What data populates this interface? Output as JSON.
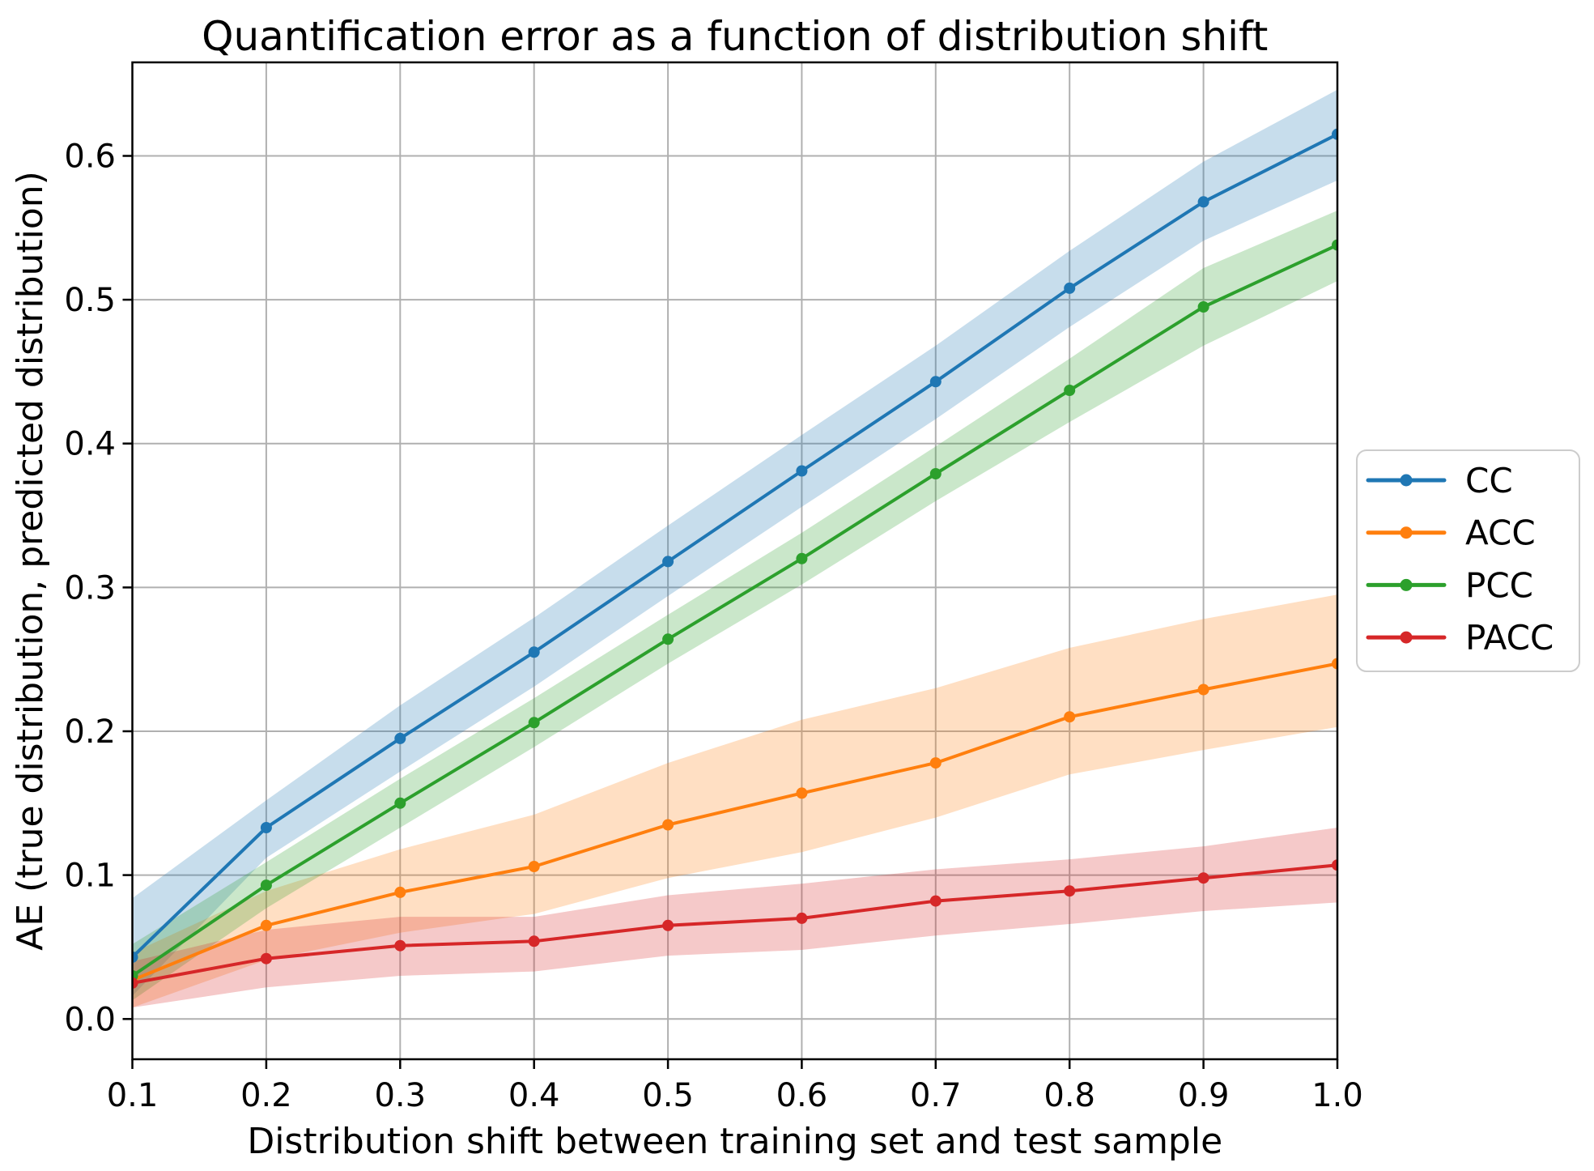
{
  "chart_data": {
    "type": "line",
    "title": "Quantification error as a function of distribution shift",
    "xlabel": "Distribution shift between training set and test sample",
    "ylabel": "AE (true distribution, predicted distribution)",
    "x": [
      0.1,
      0.2,
      0.3,
      0.4,
      0.5,
      0.6,
      0.7,
      0.8,
      0.9,
      1.0
    ],
    "xtick_labels": [
      "0.1",
      "0.2",
      "0.3",
      "0.4",
      "0.5",
      "0.6",
      "0.7",
      "0.8",
      "0.9",
      "1.0"
    ],
    "ytick_values": [
      0.0,
      0.1,
      0.2,
      0.3,
      0.4,
      0.5,
      0.6
    ],
    "ytick_labels": [
      "0.0",
      "0.1",
      "0.2",
      "0.3",
      "0.4",
      "0.5",
      "0.6"
    ],
    "xlim": [
      0.1,
      1.0
    ],
    "ylim": [
      -0.028,
      0.665
    ],
    "grid": true,
    "grid_color": "#b0b0b0",
    "spine_color": "#000000",
    "legend_position": "right-outside",
    "band_opacity": 0.25,
    "series": [
      {
        "name": "CC",
        "color": "#1f77b4",
        "values": [
          0.043,
          0.133,
          0.195,
          0.255,
          0.318,
          0.381,
          0.443,
          0.508,
          0.568,
          0.615
        ],
        "band_lower": [
          0.016,
          0.112,
          0.172,
          0.231,
          0.294,
          0.356,
          0.417,
          0.481,
          0.541,
          0.583
        ],
        "band_upper": [
          0.084,
          0.152,
          0.218,
          0.279,
          0.343,
          0.406,
          0.468,
          0.534,
          0.596,
          0.646
        ]
      },
      {
        "name": "ACC",
        "color": "#ff7f0e",
        "values": [
          0.027,
          0.065,
          0.088,
          0.106,
          0.135,
          0.157,
          0.178,
          0.21,
          0.229,
          0.247
        ],
        "band_lower": [
          0.008,
          0.041,
          0.06,
          0.073,
          0.098,
          0.116,
          0.14,
          0.17,
          0.187,
          0.203
        ],
        "band_upper": [
          0.046,
          0.089,
          0.118,
          0.142,
          0.178,
          0.208,
          0.23,
          0.258,
          0.278,
          0.295
        ]
      },
      {
        "name": "PCC",
        "color": "#2ca02c",
        "values": [
          0.03,
          0.093,
          0.15,
          0.206,
          0.264,
          0.32,
          0.379,
          0.437,
          0.495,
          0.538
        ],
        "band_lower": [
          0.013,
          0.077,
          0.133,
          0.189,
          0.247,
          0.302,
          0.36,
          0.415,
          0.468,
          0.513
        ],
        "band_upper": [
          0.052,
          0.109,
          0.167,
          0.223,
          0.281,
          0.338,
          0.398,
          0.459,
          0.522,
          0.562
        ]
      },
      {
        "name": "PACC",
        "color": "#d62728",
        "values": [
          0.025,
          0.042,
          0.051,
          0.054,
          0.065,
          0.07,
          0.082,
          0.089,
          0.098,
          0.107
        ],
        "band_lower": [
          0.008,
          0.022,
          0.03,
          0.033,
          0.044,
          0.048,
          0.058,
          0.066,
          0.075,
          0.081
        ],
        "band_upper": [
          0.04,
          0.062,
          0.071,
          0.071,
          0.086,
          0.094,
          0.104,
          0.111,
          0.12,
          0.133
        ]
      }
    ]
  }
}
